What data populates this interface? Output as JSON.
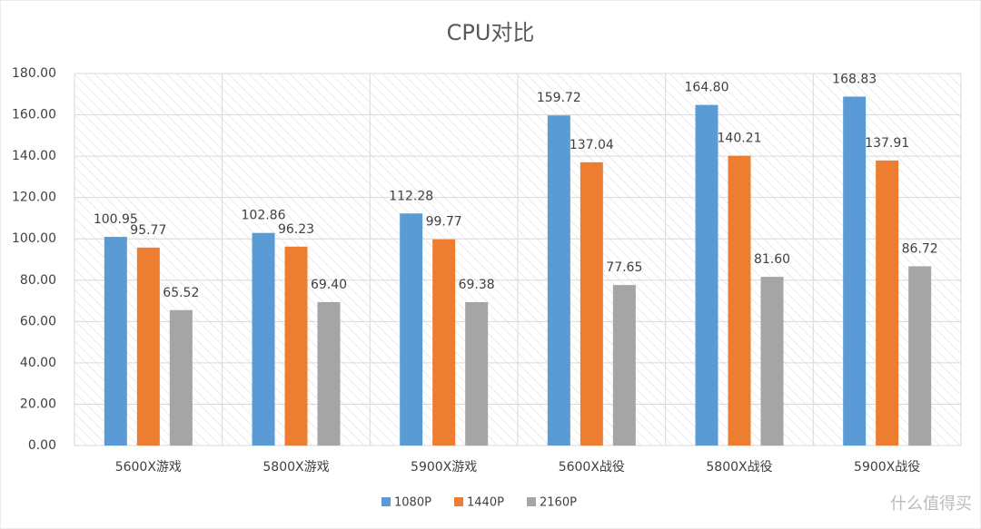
{
  "chart_data": {
    "type": "bar",
    "title": "CPU对比",
    "categories": [
      "5600X游戏",
      "5800X游戏",
      "5900X游戏",
      "5600X战役",
      "5800X战役",
      "5900X战役"
    ],
    "series": [
      {
        "name": "1080P",
        "color": "#5b9bd5",
        "values": [
          100.95,
          102.86,
          112.28,
          159.72,
          164.8,
          168.83
        ],
        "value_labels": [
          "100.95",
          "102.86",
          "112.28",
          "159.72",
          "164.80",
          "168.83"
        ]
      },
      {
        "name": "1440P",
        "color": "#ed7d31",
        "values": [
          95.77,
          96.23,
          99.77,
          137.04,
          140.21,
          137.91
        ],
        "value_labels": [
          "95.77",
          "96.23",
          "99.77",
          "137.04",
          "140.21",
          "137.91"
        ]
      },
      {
        "name": "2160P",
        "color": "#a5a5a5",
        "values": [
          65.52,
          69.4,
          69.38,
          77.65,
          81.6,
          86.72
        ],
        "value_labels": [
          "65.52",
          "69.40",
          "69.38",
          "77.65",
          "81.60",
          "86.72"
        ]
      }
    ],
    "ylim": [
      0,
      180
    ],
    "yticks": [
      {
        "value": 0,
        "label": "0.00"
      },
      {
        "value": 20,
        "label": "20.00"
      },
      {
        "value": 40,
        "label": "40.00"
      },
      {
        "value": 60,
        "label": "60.00"
      },
      {
        "value": 80,
        "label": "80.00"
      },
      {
        "value": 100,
        "label": "100.00"
      },
      {
        "value": 120,
        "label": "120.00"
      },
      {
        "value": 140,
        "label": "140.00"
      },
      {
        "value": 160,
        "label": "160.00"
      },
      {
        "value": 180,
        "label": "180.00"
      }
    ],
    "grid": true,
    "legend": "bottom",
    "watermark": "什么值得买"
  }
}
